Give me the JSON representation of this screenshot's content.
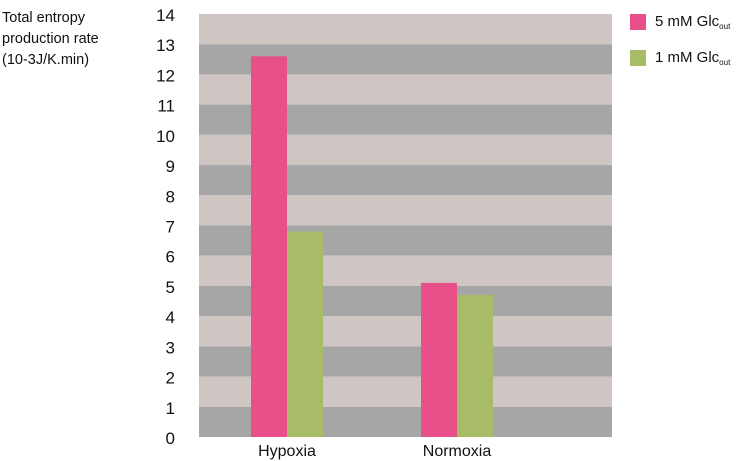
{
  "y_axis_title": [
    "Total entropy",
    "production rate",
    "(10-3J/K.min)"
  ],
  "legend": [
    {
      "main": "5 mM Glc",
      "sub": "out",
      "color": "#e8508a"
    },
    {
      "main": "1 mM Glc",
      "sub": "out",
      "color": "#a8bb66"
    }
  ],
  "colors": {
    "band_light": "#cfc5c2",
    "band_dark": "#a6a6a6"
  },
  "chart_data": {
    "type": "bar",
    "categories": [
      "Hypoxia",
      "Normoxia"
    ],
    "series": [
      {
        "name": "5 mM Glcout",
        "values": [
          12.6,
          5.1
        ]
      },
      {
        "name": "1 mM Glcout",
        "values": [
          6.8,
          4.7
        ]
      }
    ],
    "ylim": [
      0,
      14
    ],
    "yticks": [
      0,
      1,
      2,
      3,
      4,
      5,
      6,
      7,
      8,
      9,
      10,
      11,
      12,
      13,
      14
    ],
    "ylabel": "Total entropy production rate (10-3J/K.min)",
    "xlabel": "",
    "grid": "alternating horizontal bands",
    "legend_position": "top-right"
  }
}
